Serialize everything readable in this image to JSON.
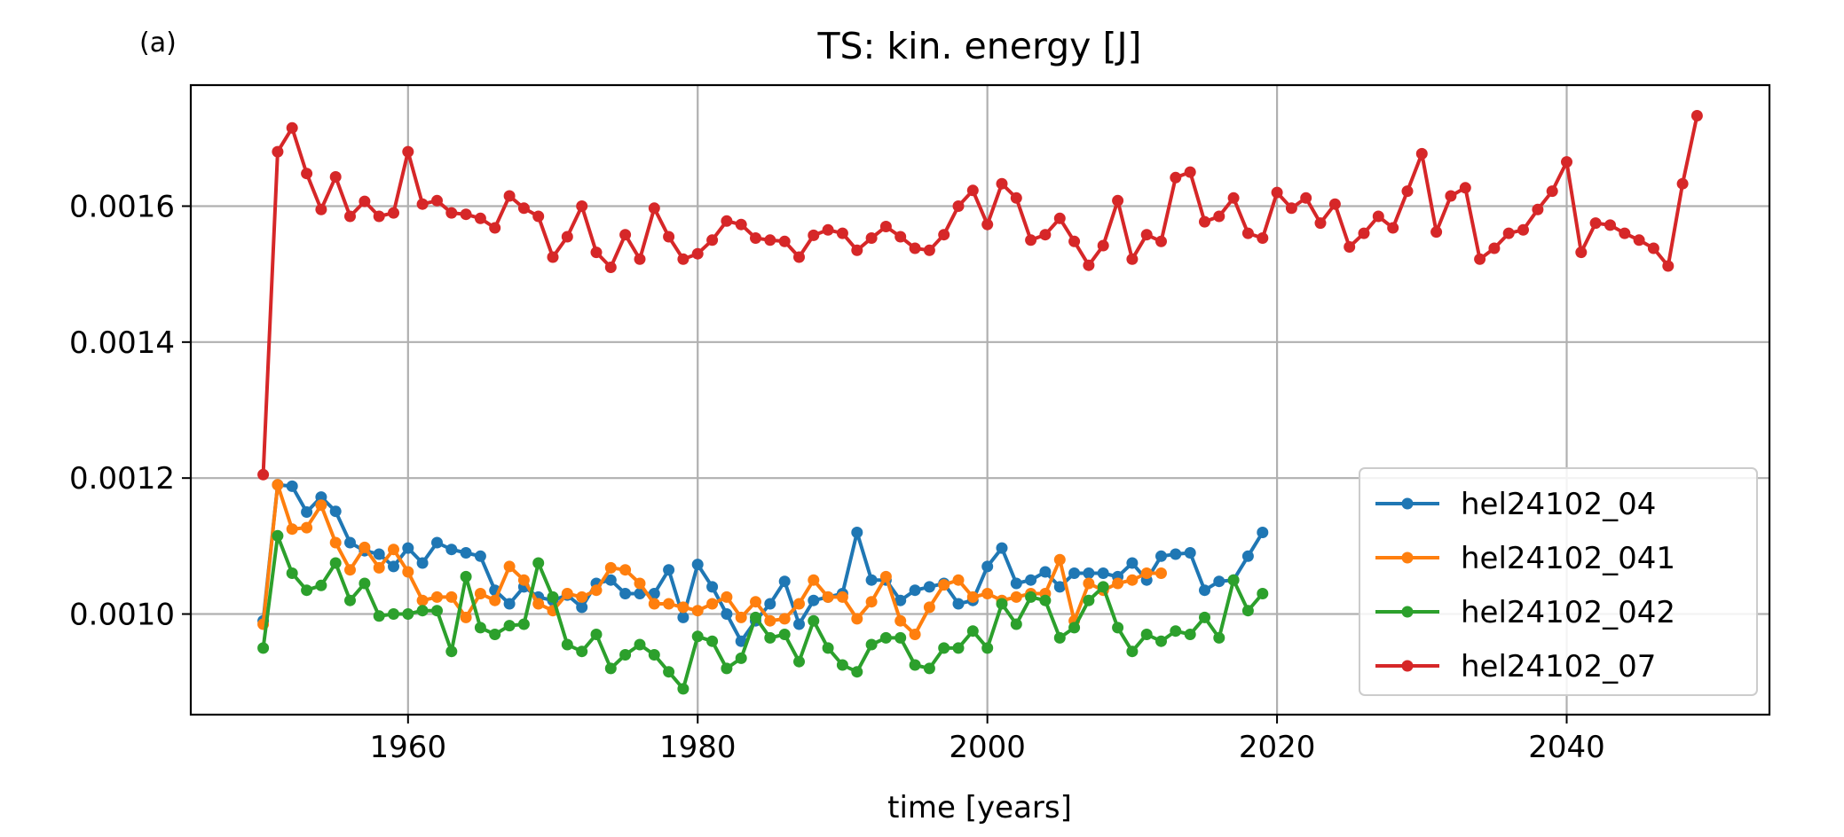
{
  "chart_data": {
    "type": "line",
    "panel_label": "(a)",
    "title": "TS: kin. energy [J]",
    "xlabel": "time [years]",
    "ylabel": "",
    "xlim": [
      1945,
      2054
    ],
    "ylim": [
      0.000852,
      0.001778
    ],
    "x_ticks": [
      1960,
      1980,
      2000,
      2020,
      2040
    ],
    "x_tick_labels": [
      "1960",
      "1980",
      "2000",
      "2020",
      "2040"
    ],
    "y_ticks": [
      0.001,
      0.0012,
      0.0014,
      0.0016
    ],
    "y_tick_labels": [
      "0.0010",
      "0.0012",
      "0.0014",
      "0.0016"
    ],
    "grid": true,
    "legend_position": "lower right",
    "marker": "circle",
    "series": [
      {
        "name": "hel24102_04",
        "color": "#1f77b4",
        "x_start": 1950,
        "values": [
          0.00099,
          0.00119,
          0.001188,
          0.00115,
          0.001172,
          0.001151,
          0.001105,
          0.001093,
          0.001088,
          0.00107,
          0.001097,
          0.001075,
          0.001105,
          0.001095,
          0.00109,
          0.001085,
          0.001035,
          0.001015,
          0.00104,
          0.001025,
          0.00102,
          0.001028,
          0.00101,
          0.001045,
          0.00105,
          0.00103,
          0.00103,
          0.00103,
          0.001065,
          0.000995,
          0.001073,
          0.00104,
          0.001,
          0.00096,
          0.00099,
          0.001015,
          0.001048,
          0.000985,
          0.00102,
          0.001025,
          0.00103,
          0.00112,
          0.00105,
          0.00105,
          0.00102,
          0.001035,
          0.00104,
          0.001045,
          0.001015,
          0.00102,
          0.00107,
          0.001097,
          0.001045,
          0.00105,
          0.001062,
          0.00104,
          0.00106,
          0.00106,
          0.00106,
          0.001055,
          0.001075,
          0.00105,
          0.001085,
          0.001088,
          0.00109,
          0.001035,
          0.001048,
          0.00105,
          0.001085,
          0.00112
        ]
      },
      {
        "name": "hel24102_041",
        "color": "#ff7f0e",
        "x_start": 1950,
        "values": [
          0.000985,
          0.00119,
          0.001125,
          0.001127,
          0.00116,
          0.001105,
          0.001065,
          0.001098,
          0.001068,
          0.001095,
          0.001062,
          0.00102,
          0.001025,
          0.001025,
          0.000995,
          0.00103,
          0.00102,
          0.00107,
          0.00105,
          0.001015,
          0.001005,
          0.00103,
          0.001025,
          0.001035,
          0.001068,
          0.001065,
          0.001045,
          0.001015,
          0.001015,
          0.00101,
          0.001005,
          0.001015,
          0.001025,
          0.000995,
          0.001018,
          0.00099,
          0.000993,
          0.001015,
          0.00105,
          0.001025,
          0.001025,
          0.000993,
          0.001018,
          0.001055,
          0.00099,
          0.00097,
          0.00101,
          0.001043,
          0.00105,
          0.001025,
          0.00103,
          0.00102,
          0.001025,
          0.00103,
          0.00103,
          0.00108,
          0.00099,
          0.001045,
          0.001035,
          0.001045,
          0.00105,
          0.00106,
          0.00106
        ]
      },
      {
        "name": "hel24102_042",
        "color": "#2ca02c",
        "x_start": 1950,
        "values": [
          0.00095,
          0.001115,
          0.00106,
          0.001035,
          0.001042,
          0.001075,
          0.00102,
          0.001045,
          0.000997,
          0.001,
          0.001,
          0.001005,
          0.001005,
          0.000945,
          0.001055,
          0.00098,
          0.00097,
          0.000983,
          0.000985,
          0.001075,
          0.001025,
          0.000955,
          0.000945,
          0.00097,
          0.00092,
          0.00094,
          0.000955,
          0.00094,
          0.000915,
          0.00089,
          0.000967,
          0.00096,
          0.00092,
          0.000935,
          0.000995,
          0.000965,
          0.00097,
          0.00093,
          0.00099,
          0.00095,
          0.000925,
          0.000915,
          0.000955,
          0.000965,
          0.000965,
          0.000925,
          0.00092,
          0.00095,
          0.00095,
          0.000975,
          0.00095,
          0.001015,
          0.000985,
          0.001025,
          0.00102,
          0.000965,
          0.00098,
          0.00102,
          0.00104,
          0.00098,
          0.000945,
          0.00097,
          0.00096,
          0.000975,
          0.00097,
          0.000995,
          0.000965,
          0.00105,
          0.001005,
          0.00103
        ]
      },
      {
        "name": "hel24102_07",
        "color": "#d62728",
        "x_start": 1950,
        "values": [
          0.001205,
          0.00168,
          0.001715,
          0.001648,
          0.001595,
          0.001643,
          0.001585,
          0.001607,
          0.001585,
          0.00159,
          0.00168,
          0.001603,
          0.001608,
          0.00159,
          0.001588,
          0.001582,
          0.001568,
          0.001615,
          0.001597,
          0.001585,
          0.001525,
          0.001555,
          0.0016,
          0.001532,
          0.00151,
          0.001558,
          0.001522,
          0.001597,
          0.001555,
          0.001522,
          0.00153,
          0.00155,
          0.001578,
          0.001573,
          0.001553,
          0.00155,
          0.001548,
          0.001525,
          0.001557,
          0.001565,
          0.00156,
          0.001535,
          0.001553,
          0.00157,
          0.001555,
          0.001538,
          0.001535,
          0.001558,
          0.0016,
          0.001623,
          0.001573,
          0.001633,
          0.001612,
          0.00155,
          0.001558,
          0.001582,
          0.001548,
          0.001513,
          0.001542,
          0.001608,
          0.001522,
          0.001558,
          0.001548,
          0.001642,
          0.00165,
          0.001577,
          0.001585,
          0.001612,
          0.00156,
          0.001553,
          0.00162,
          0.001597,
          0.001612,
          0.001575,
          0.001603,
          0.00154,
          0.00156,
          0.001585,
          0.001568,
          0.001622,
          0.001677,
          0.001562,
          0.001615,
          0.001627,
          0.001522,
          0.001538,
          0.00156,
          0.001565,
          0.001595,
          0.001622,
          0.001665,
          0.001532,
          0.001575,
          0.001572,
          0.00156,
          0.00155,
          0.001538,
          0.001512,
          0.001633,
          0.001733
        ]
      }
    ]
  }
}
